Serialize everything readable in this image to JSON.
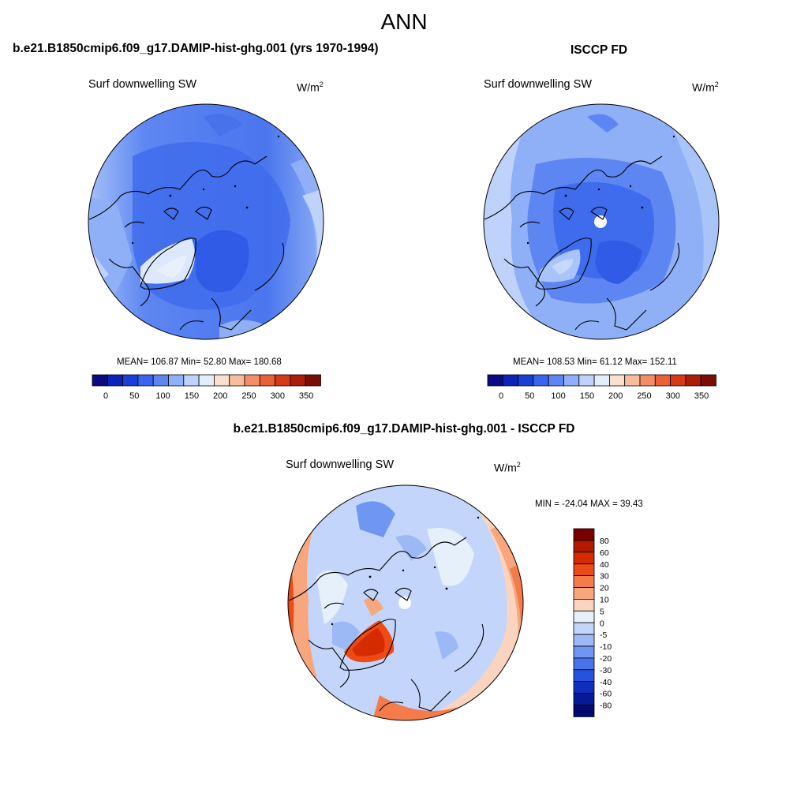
{
  "figure": {
    "title": "ANN"
  },
  "panels": {
    "model": {
      "title": "b.e21.B1850cmip6.f09_g17.DAMIP-hist-ghg.001 (yrs 1970-1994)",
      "variable": "Surf downwelling SW",
      "units_base": "W/m",
      "units_exp": "2",
      "stats": "MEAN= 106.87  Min=  52.80  Max= 180.68",
      "colorbar_labels": [
        "0",
        "50",
        "100",
        "150",
        "200",
        "250",
        "300",
        "350"
      ]
    },
    "obs": {
      "title": "ISCCP FD",
      "variable": "Surf downwelling SW",
      "units_base": "W/m",
      "units_exp": "2",
      "stats": "MEAN= 108.53  Min=  61.12  Max= 152.11",
      "colorbar_labels": [
        "0",
        "50",
        "100",
        "150",
        "200",
        "250",
        "300",
        "350"
      ]
    },
    "diff": {
      "title": "b.e21.B1850cmip6.f09_g17.DAMIP-hist-ghg.001 - ISCCP FD",
      "variable": "Surf downwelling SW",
      "units_base": "W/m",
      "units_exp": "2",
      "stats": "MIN = -24.04 MAX =  39.43",
      "colorbar_labels": [
        "80",
        "60",
        "40",
        "30",
        "20",
        "10",
        "5",
        "0",
        "-5",
        "-10",
        "-20",
        "-30",
        "-40",
        "-60",
        "-80"
      ]
    }
  },
  "colors": {
    "abs_palette": [
      "#0a0a82",
      "#0c23b9",
      "#1a3fd6",
      "#3a63ee",
      "#5d86f2",
      "#8fb0f7",
      "#bed2fa",
      "#e3eefc",
      "#fbe0cf",
      "#f8bd9b",
      "#f28f67",
      "#ea6138",
      "#d63a17",
      "#ab1f08",
      "#7a0d04"
    ],
    "diff_palette": [
      "#7a0000",
      "#b01a00",
      "#d62b00",
      "#ee4a16",
      "#f47b4a",
      "#f8a67e",
      "#fbd4bf",
      "#e6f0fb",
      "#c3d5fa",
      "#9cb9f6",
      "#6f96f1",
      "#4672ea",
      "#2453e0",
      "#0c2fc2",
      "#061a99",
      "#020a6e"
    ]
  }
}
